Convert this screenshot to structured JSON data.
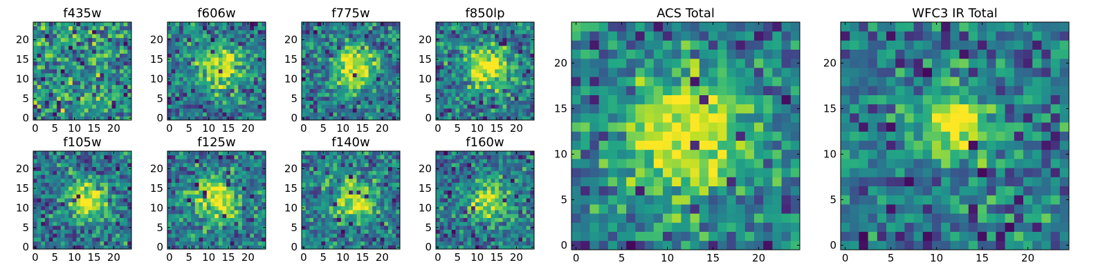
{
  "figure": {
    "colormap": "viridis",
    "colormap_stops": [
      "#440154",
      "#482475",
      "#414487",
      "#355f8d",
      "#2a788e",
      "#21918c",
      "#22a884",
      "#44bf70",
      "#7ad151",
      "#bddf26",
      "#fde725"
    ],
    "pixel_grid": [
      25,
      25
    ],
    "axis_color": "#000000"
  },
  "chart_data": [
    {
      "type": "heatmap",
      "id": "f435w",
      "title": "f435w",
      "xlim": [
        0,
        24
      ],
      "ylim": [
        0,
        24
      ],
      "xticks": [
        0,
        5,
        10,
        15,
        20
      ],
      "yticks": [
        0,
        5,
        10,
        15,
        20
      ],
      "value_range": [
        0.7,
        0.95
      ],
      "peak": null,
      "sigma": 0,
      "seed": 11
    },
    {
      "type": "heatmap",
      "id": "f606w",
      "title": "f606w",
      "xlim": [
        0,
        24
      ],
      "ylim": [
        0,
        24
      ],
      "xticks": [
        0,
        5,
        10,
        15,
        20
      ],
      "yticks": [
        0,
        5,
        10,
        15,
        20
      ],
      "value_range": [
        0.62,
        0.85
      ],
      "peak": [
        13,
        13
      ],
      "sigma": 4,
      "seed": 23
    },
    {
      "type": "heatmap",
      "id": "f775w",
      "title": "f775w",
      "xlim": [
        0,
        24
      ],
      "ylim": [
        0,
        24
      ],
      "xticks": [
        0,
        5,
        10,
        15,
        20
      ],
      "yticks": [
        0,
        5,
        10,
        15,
        20
      ],
      "value_range": [
        0.6,
        0.82
      ],
      "peak": [
        13,
        13
      ],
      "sigma": 4,
      "seed": 37
    },
    {
      "type": "heatmap",
      "id": "f850lp",
      "title": "f850lp",
      "xlim": [
        0,
        24
      ],
      "ylim": [
        0,
        24
      ],
      "xticks": [
        0,
        5,
        10,
        15,
        20
      ],
      "yticks": [
        0,
        5,
        10,
        15,
        20
      ],
      "value_range": [
        0.6,
        0.82
      ],
      "peak": [
        13,
        13
      ],
      "sigma": 4,
      "seed": 41
    },
    {
      "type": "heatmap",
      "id": "f105w",
      "title": "f105w",
      "xlim": [
        0,
        24
      ],
      "ylim": [
        0,
        24
      ],
      "xticks": [
        0,
        5,
        10,
        15,
        20
      ],
      "yticks": [
        0,
        5,
        10,
        15,
        20
      ],
      "value_range": [
        0.55,
        0.75
      ],
      "peak": [
        13,
        12
      ],
      "sigma": 3.5,
      "seed": 53
    },
    {
      "type": "heatmap",
      "id": "f125w",
      "title": "f125w",
      "xlim": [
        0,
        24
      ],
      "ylim": [
        0,
        24
      ],
      "xticks": [
        0,
        5,
        10,
        15,
        20
      ],
      "yticks": [
        0,
        5,
        10,
        15,
        20
      ],
      "value_range": [
        0.62,
        0.78
      ],
      "peak": [
        12,
        12
      ],
      "sigma": 4,
      "seed": 61
    },
    {
      "type": "heatmap",
      "id": "f140w",
      "title": "f140w",
      "xlim": [
        0,
        24
      ],
      "ylim": [
        0,
        24
      ],
      "xticks": [
        0,
        5,
        10,
        15,
        20
      ],
      "yticks": [
        0,
        5,
        10,
        15,
        20
      ],
      "value_range": [
        0.58,
        0.78
      ],
      "peak": [
        13,
        12
      ],
      "sigma": 3.5,
      "seed": 71
    },
    {
      "type": "heatmap",
      "id": "f160w",
      "title": "f160w",
      "xlim": [
        0,
        24
      ],
      "ylim": [
        0,
        24
      ],
      "xticks": [
        0,
        5,
        10,
        15,
        20
      ],
      "yticks": [
        0,
        5,
        10,
        15,
        20
      ],
      "value_range": [
        0.55,
        0.76
      ],
      "peak": [
        13,
        12
      ],
      "sigma": 3.5,
      "seed": 83
    },
    {
      "type": "heatmap",
      "id": "acs-total",
      "title": "ACS Total",
      "xlim": [
        0,
        24
      ],
      "ylim": [
        0,
        24
      ],
      "xticks": [
        0,
        5,
        10,
        15,
        20
      ],
      "yticks": [
        0,
        5,
        10,
        15,
        20
      ],
      "value_range": [
        0.68,
        0.86
      ],
      "peak": [
        12,
        12
      ],
      "sigma": 5,
      "seed": 97
    },
    {
      "type": "heatmap",
      "id": "wfc3-ir-total",
      "title": "WFC3 IR Total",
      "xlim": [
        0,
        24
      ],
      "ylim": [
        0,
        24
      ],
      "xticks": [
        0,
        5,
        10,
        15,
        20
      ],
      "yticks": [
        0,
        5,
        10,
        15,
        20
      ],
      "value_range": [
        0.45,
        0.55
      ],
      "peak": [
        12,
        13
      ],
      "sigma": 2.8,
      "seed": 107
    }
  ]
}
